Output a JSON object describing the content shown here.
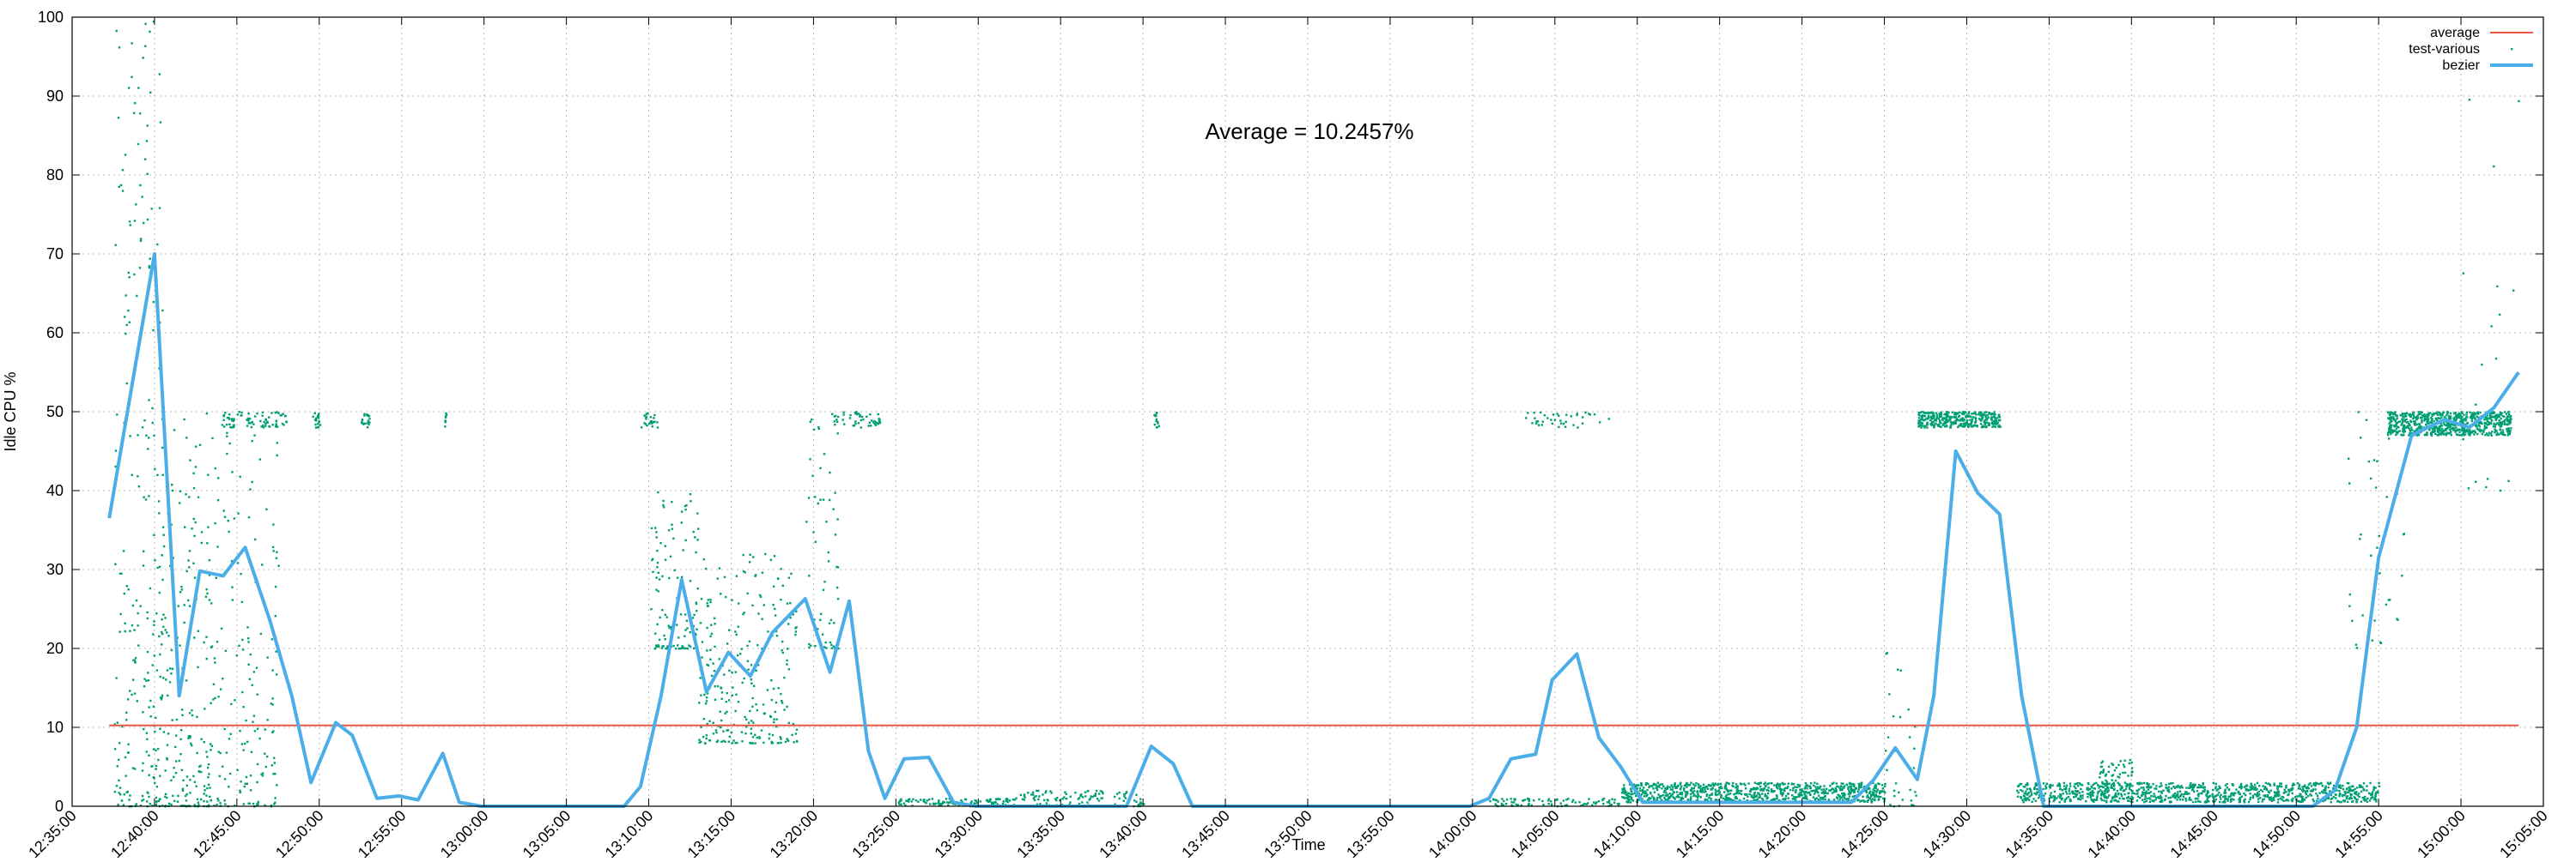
{
  "chart_data": {
    "type": "line",
    "xlabel": "Time",
    "ylabel": "Idle CPU %",
    "annotation": "Average = 10.2457%",
    "ylim": [
      0,
      100
    ],
    "yticks": [
      0,
      10,
      20,
      30,
      40,
      50,
      60,
      70,
      80,
      90,
      100
    ],
    "xlim": [
      "12:35:00",
      "15:05:00"
    ],
    "xticks": [
      "12:35:00",
      "12:40:00",
      "12:45:00",
      "12:50:00",
      "12:55:00",
      "13:00:00",
      "13:05:00",
      "13:10:00",
      "13:15:00",
      "13:20:00",
      "13:25:00",
      "13:30:00",
      "13:35:00",
      "13:40:00",
      "13:45:00",
      "13:50:00",
      "13:55:00",
      "14:00:00",
      "14:05:00",
      "14:10:00",
      "14:15:00",
      "14:20:00",
      "14:25:00",
      "14:30:00",
      "14:35:00",
      "14:40:00",
      "14:45:00",
      "14:50:00",
      "14:55:00",
      "15:00:00",
      "15:05:00"
    ],
    "grid": true,
    "legend_position": "top-right",
    "colors": {
      "average": "#e8573f",
      "scatter": "#009e73",
      "bezier": "#4baee8",
      "grid": "#bbbbbb"
    },
    "series": [
      {
        "name": "average",
        "kind": "line",
        "x": [
          "12:37:15",
          "15:03:30"
        ],
        "y": [
          10.2457,
          10.2457
        ]
      },
      {
        "name": "test-various",
        "kind": "scatter",
        "clusters": [
          {
            "x": [
              "12:37:30",
              "12:40:30"
            ],
            "y": [
              0,
              100
            ],
            "count": 220
          },
          {
            "x": [
              "12:40:00",
              "12:43:30"
            ],
            "y": [
              0,
              50
            ],
            "count": 220
          },
          {
            "x": [
              "12:43:30",
              "12:47:30"
            ],
            "y": [
              0,
              50
            ],
            "count": 160
          },
          {
            "x": [
              "12:44:00",
              "12:48:00"
            ],
            "y": [
              48,
              50
            ],
            "count": 80
          },
          {
            "x": [
              "12:49:30",
              "12:50:00"
            ],
            "y": [
              48,
              50
            ],
            "count": 20
          },
          {
            "x": [
              "12:52:30",
              "12:53:00"
            ],
            "y": [
              48,
              50
            ],
            "count": 20
          },
          {
            "x": [
              "12:57:30",
              "12:57:40"
            ],
            "y": [
              48,
              50
            ],
            "count": 8
          },
          {
            "x": [
              "13:09:30",
              "13:10:30"
            ],
            "y": [
              48,
              50
            ],
            "count": 25
          },
          {
            "x": [
              "13:10:00",
              "13:13:00"
            ],
            "y": [
              20,
              40
            ],
            "count": 120
          },
          {
            "x": [
              "13:13:00",
              "13:19:00"
            ],
            "y": [
              8,
              32
            ],
            "count": 260
          },
          {
            "x": [
              "13:19:30",
              "13:21:30"
            ],
            "y": [
              20,
              50
            ],
            "count": 60
          },
          {
            "x": [
              "13:21:00",
              "13:24:00"
            ],
            "y": [
              48,
              50
            ],
            "count": 50
          },
          {
            "x": [
              "13:25:00",
              "13:32:00"
            ],
            "y": [
              0,
              1
            ],
            "count": 120
          },
          {
            "x": [
              "13:32:00",
              "13:40:00"
            ],
            "y": [
              0,
              2
            ],
            "count": 110
          },
          {
            "x": [
              "13:40:30",
              "13:41:00"
            ],
            "y": [
              48,
              50
            ],
            "count": 14
          },
          {
            "x": [
              "14:01:00",
              "14:09:00"
            ],
            "y": [
              0,
              1
            ],
            "count": 90
          },
          {
            "x": [
              "14:03:00",
              "14:08:30"
            ],
            "y": [
              48,
              50
            ],
            "count": 40
          },
          {
            "x": [
              "14:09:00",
              "14:25:00"
            ],
            "y": [
              0.5,
              3
            ],
            "count": 900
          },
          {
            "x": [
              "14:25:00",
              "14:27:00"
            ],
            "y": [
              0,
              20
            ],
            "count": 30
          },
          {
            "x": [
              "14:27:00",
              "14:32:00"
            ],
            "y": [
              48,
              50
            ],
            "count": 360
          },
          {
            "x": [
              "14:33:00",
              "14:55:00"
            ],
            "y": [
              0.5,
              3
            ],
            "count": 1000
          },
          {
            "x": [
              "14:38:00",
              "14:40:00"
            ],
            "y": [
              2,
              6
            ],
            "count": 60
          },
          {
            "x": [
              "14:53:00",
              "14:57:00"
            ],
            "y": [
              20,
              50
            ],
            "count": 40
          },
          {
            "x": [
              "14:55:30",
              "15:03:00"
            ],
            "y": [
              47,
              50
            ],
            "count": 700
          },
          {
            "x": [
              "15:00:00",
              "15:03:30"
            ],
            "y": [
              40,
              100
            ],
            "count": 20
          }
        ]
      },
      {
        "name": "bezier",
        "kind": "line",
        "x": [
          "12:37:15",
          "12:40:00",
          "12:41:30",
          "12:42:45",
          "12:44:10",
          "12:45:30",
          "12:47:00",
          "12:48:20",
          "12:49:30",
          "12:51:00",
          "12:52:00",
          "12:53:30",
          "12:54:50",
          "12:56:00",
          "12:57:30",
          "12:58:30",
          "12:59:50",
          "13:01:00",
          "13:08:30",
          "13:09:30",
          "13:10:45",
          "13:12:00",
          "13:13:30",
          "13:14:50",
          "13:16:10",
          "13:17:30",
          "13:19:30",
          "13:21:00",
          "13:22:10",
          "13:23:20",
          "13:24:20",
          "13:25:30",
          "13:27:00",
          "13:28:30",
          "13:29:50",
          "13:31:00",
          "13:39:00",
          "13:40:30",
          "13:41:50",
          "13:43:00",
          "13:59:50",
          "14:01:00",
          "14:02:20",
          "14:03:50",
          "14:04:50",
          "14:06:20",
          "14:07:40",
          "14:09:00",
          "14:10:20",
          "14:23:00",
          "14:24:20",
          "14:25:40",
          "14:27:00",
          "14:28:00",
          "14:29:20",
          "14:30:40",
          "14:32:00",
          "14:33:20",
          "14:34:40",
          "14:36:00",
          "14:51:00",
          "14:52:20",
          "14:53:40",
          "14:55:00",
          "14:57:00",
          "14:59:00",
          "15:00:30",
          "15:02:00",
          "15:03:30"
        ],
        "y": [
          36.5,
          70,
          14,
          29.8,
          29.2,
          32.8,
          23.6,
          14,
          3,
          10.6,
          9,
          1,
          1.3,
          0.8,
          6.7,
          0.5,
          0,
          0,
          0,
          2.5,
          14,
          28.7,
          14.5,
          19.5,
          16.5,
          22,
          26.3,
          17,
          26,
          7,
          1,
          6,
          6.2,
          0.5,
          0,
          0,
          0,
          7.6,
          5.4,
          0,
          0,
          1,
          6,
          6.6,
          16,
          19.3,
          8.7,
          5,
          0.5,
          0.5,
          3.3,
          7.4,
          3.4,
          14,
          45,
          39.7,
          37,
          14,
          0,
          0,
          0,
          2,
          10,
          31.5,
          47,
          49,
          48,
          50.5,
          55
        ]
      }
    ]
  }
}
